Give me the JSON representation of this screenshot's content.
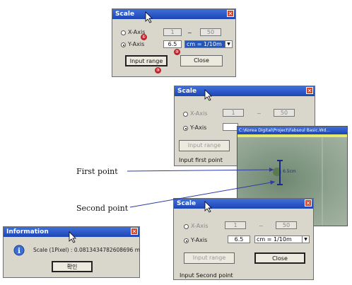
{
  "dialog1": {
    "title": "Scale",
    "x_axis": "X-Axis",
    "y_axis": "Y-Axis",
    "x_from": "1",
    "x_to": "50",
    "dash": "~",
    "y_value": "6.5",
    "unit": "cm = 1/10m",
    "input_range": "Input range",
    "close": "Close",
    "markers": [
      "①",
      "②",
      "③"
    ]
  },
  "dialog2": {
    "title": "Scale",
    "x_axis": "X-Axis",
    "y_axis": "Y-Axis",
    "x_from": "1",
    "x_to": "50",
    "dash": "~",
    "input_range": "Input range",
    "status": "Input first point"
  },
  "image_window": {
    "title": "C:\\Korea Digital\\Project\\Fabsoul Basic.Wd...",
    "label": "6.5cm"
  },
  "dialog3": {
    "title": "Scale",
    "x_axis": "X-Axis",
    "y_axis": "Y-Axis",
    "x_from": "1",
    "x_to": "50",
    "dash": "~",
    "y_value": "6.5",
    "unit": "cm = 1/10m",
    "input_range": "Input range",
    "close": "Close",
    "status": "Input Second point"
  },
  "info": {
    "title": "Information",
    "message": "Scale (1Pixel) : 0.0813434782608696 m",
    "ok": "확인"
  },
  "annotations": {
    "first_point": "First point",
    "second_point": "Second point"
  }
}
